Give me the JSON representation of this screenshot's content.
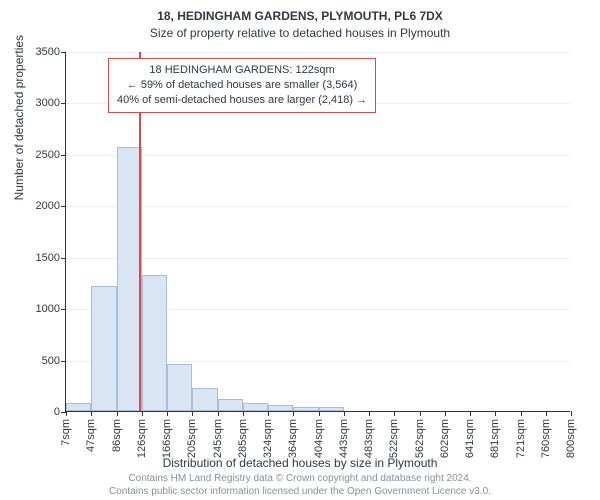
{
  "title": {
    "address": "18, HEDINGHAM GARDENS, PLYMOUTH, PL6 7DX",
    "subtitle": "Size of property relative to detached houses in Plymouth"
  },
  "chart": {
    "type": "histogram",
    "y_axis": {
      "label": "Number of detached properties",
      "min": 0,
      "max": 3500,
      "step": 500,
      "label_fontsize": 12,
      "tick_fontsize": 11
    },
    "x_axis": {
      "label": "Distribution of detached houses by size in Plymouth",
      "ticks": [
        "7sqm",
        "47sqm",
        "86sqm",
        "126sqm",
        "166sqm",
        "205sqm",
        "245sqm",
        "285sqm",
        "324sqm",
        "364sqm",
        "404sqm",
        "443sqm",
        "483sqm",
        "522sqm",
        "562sqm",
        "602sqm",
        "641sqm",
        "681sqm",
        "721sqm",
        "760sqm",
        "800sqm"
      ],
      "label_fontsize": 12,
      "tick_fontsize": 11
    },
    "bars": {
      "values": [
        80,
        1220,
        2570,
        1320,
        460,
        220,
        120,
        80,
        60,
        40,
        40,
        0,
        0,
        0,
        0,
        0,
        0,
        0,
        0,
        0
      ],
      "fill_color": "#dae5f4",
      "border_color": "#a9bedd",
      "width_fraction": 1.0
    },
    "marker": {
      "position_sqm": 122,
      "color": "#d84b4b",
      "line_width": 2
    },
    "annotation": {
      "line1": "18 HEDINGHAM GARDENS: 122sqm",
      "line2": "← 59% of detached houses are smaller (3,564)",
      "line3": "40% of semi-detached houses are larger (2,418) →",
      "border_color": "#d84b4b",
      "background": "#ffffff",
      "fontsize": 11
    },
    "background_color": "#ffffff",
    "grid_color": "#eceef3"
  },
  "footer": {
    "line1": "Contains HM Land Registry data © Crown copyright and database right 2024.",
    "line2": "Contains public sector information licensed under the Open Government Licence v3.0."
  }
}
